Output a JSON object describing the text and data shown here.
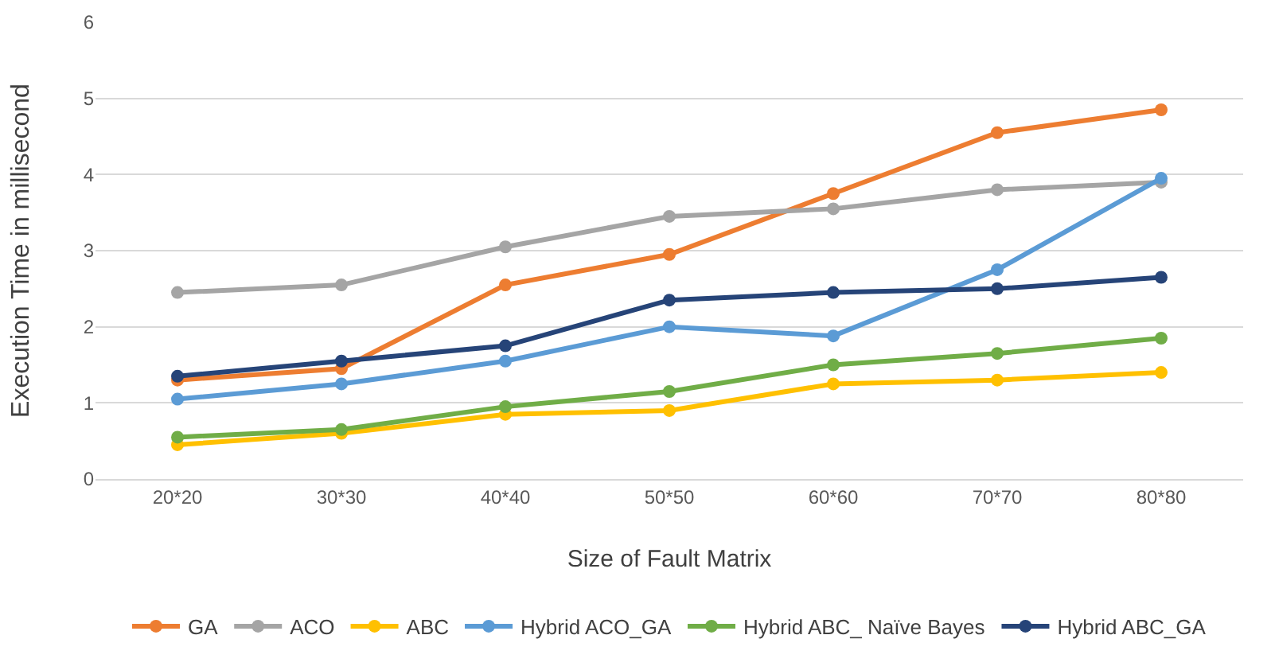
{
  "chart_data": {
    "type": "line",
    "xlabel": "Size of Fault Matrix",
    "ylabel": "Execution Time in millisecond",
    "categories": [
      "20*20",
      "30*30",
      "40*40",
      "50*50",
      "60*60",
      "70*70",
      "80*80"
    ],
    "series": [
      {
        "name": "GA",
        "color": "#ed7d31",
        "values": [
          1.3,
          1.45,
          2.55,
          2.95,
          3.75,
          4.55,
          4.85
        ]
      },
      {
        "name": "ACO",
        "color": "#a5a5a5",
        "values": [
          2.45,
          2.55,
          3.05,
          3.45,
          3.55,
          3.8,
          3.9
        ]
      },
      {
        "name": "ABC",
        "color": "#ffc000",
        "values": [
          0.45,
          0.6,
          0.85,
          0.9,
          1.25,
          1.3,
          1.4
        ]
      },
      {
        "name": "Hybrid ACO_GA",
        "color": "#5b9bd5",
        "values": [
          1.05,
          1.25,
          1.55,
          2.0,
          1.88,
          2.75,
          3.95
        ]
      },
      {
        "name": "Hybrid ABC_ Naïve Bayes",
        "color": "#70ad47",
        "values": [
          0.55,
          0.65,
          0.95,
          1.15,
          1.5,
          1.65,
          1.85
        ]
      },
      {
        "name": "Hybrid ABC_GA",
        "color": "#264478",
        "values": [
          1.35,
          1.55,
          1.75,
          2.35,
          2.45,
          2.5,
          2.65
        ]
      }
    ],
    "ylim": [
      0,
      6
    ],
    "yticks": [
      0,
      1,
      2,
      3,
      4,
      5,
      6
    ],
    "grid": "y",
    "legend": "bottom",
    "marker": "circle",
    "line_style": "solid"
  }
}
